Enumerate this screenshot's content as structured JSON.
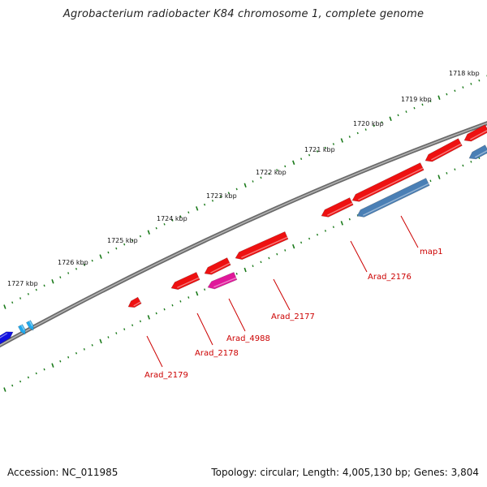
{
  "title": "Agrobacterium radiobacter K84 chromosome 1, complete genome",
  "footer": {
    "accession": "Accession: NC_011985",
    "summary": "Topology: circular; Length: 4,005,130 bp; Genes: 3,804"
  },
  "colors": {
    "gene_red": "#ee1111",
    "gene_blue": "#4a7fb5",
    "gene_magenta": "#e0189a",
    "gene_navy": "#1010e0",
    "gene_cyan": "#22aaee",
    "backbone": "#7a7a7a",
    "tick_green": "#1a7a1a",
    "label_red": "#cc0000"
  },
  "kbp_labels": [
    "1718 kbp",
    "1719 kbp",
    "1720 kbp",
    "1721 kbp",
    "1722 kbp",
    "1723 kbp",
    "1724 kbp",
    "1725 kbp",
    "1726 kbp",
    "1727 kbp"
  ],
  "gene_labels": [
    "map1",
    "Arad_2176",
    "Arad_2177",
    "Arad_4988",
    "Arad_2178",
    "Arad_2179"
  ]
}
